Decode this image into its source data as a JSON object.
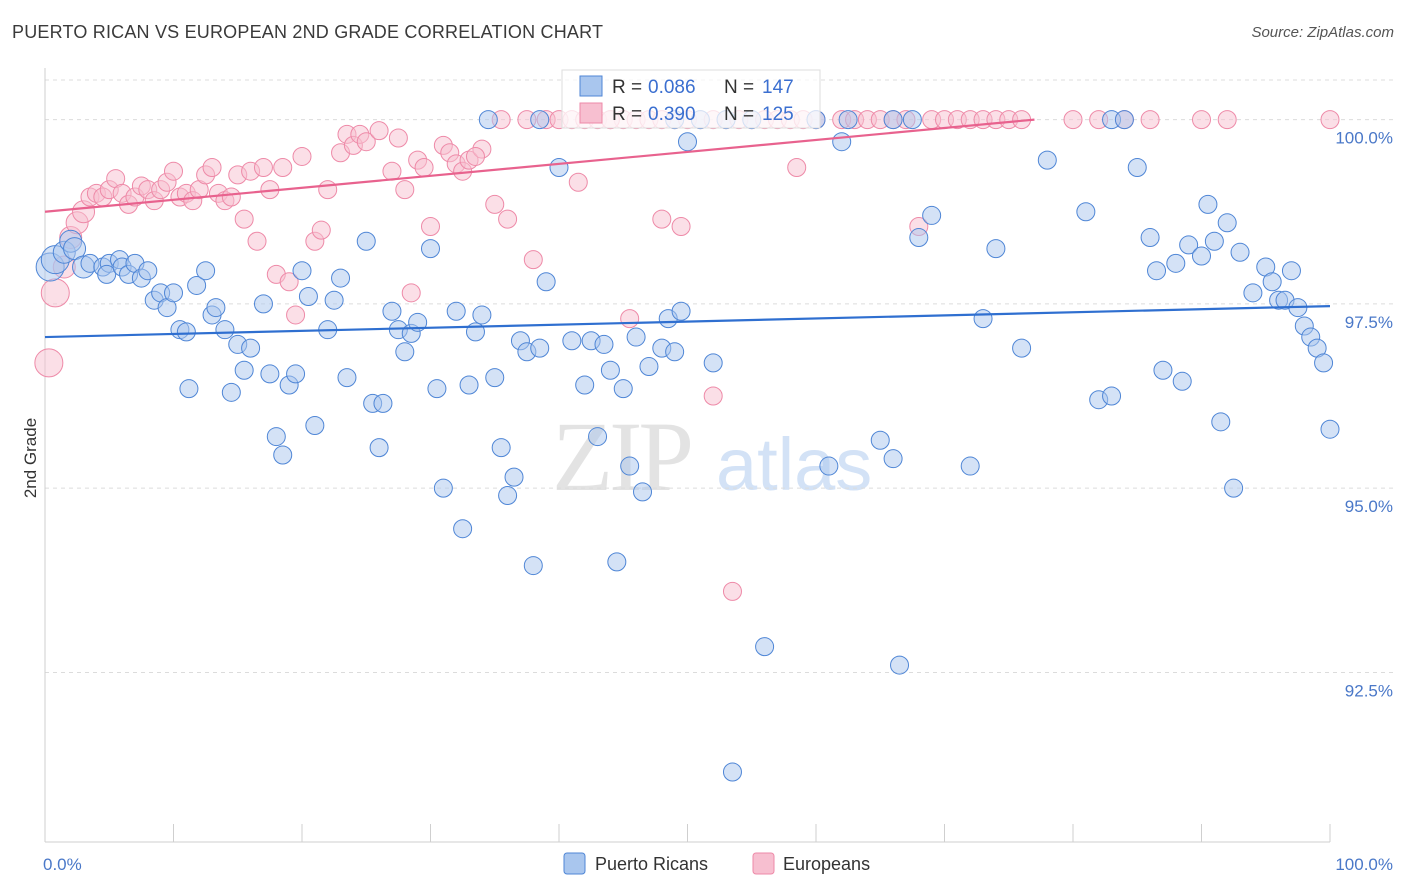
{
  "header": {
    "title": "PUERTO RICAN VS EUROPEAN 2ND GRADE CORRELATION CHART",
    "source": "Source: ZipAtlas.com"
  },
  "watermark": {
    "zip": "ZIP",
    "atlas": "atlas"
  },
  "colors": {
    "blue_fill": "#a9c6ee",
    "blue_stroke": "#4f86d6",
    "blue_line": "#2f6fd0",
    "pink_fill": "#f7bfd0",
    "pink_stroke": "#ee8aa8",
    "pink_line": "#e8628e",
    "grid": "#dcdcdc",
    "tick_text": "#4a78c8"
  },
  "chart_data": {
    "type": "scatter",
    "title": "PUERTO RICAN VS EUROPEAN 2ND GRADE CORRELATION CHART",
    "xlabel": "",
    "ylabel": "2nd Grade",
    "xlim": [
      0,
      100
    ],
    "ylim": [
      90.2,
      100.7
    ],
    "y_ticks": [
      92.5,
      95.0,
      97.5,
      100.0
    ],
    "y_tick_labels": [
      "92.5%",
      "95.0%",
      "97.5%",
      "100.0%"
    ],
    "x_tick_labels": [
      "0.0%",
      "100.0%"
    ],
    "legend": {
      "series": [
        {
          "name": "Puerto Ricans",
          "r_label": "R =",
          "r_value": "0.086",
          "n_label": "N =",
          "n_value": "147"
        },
        {
          "name": "Europeans",
          "r_label": "R =",
          "r_value": "0.390",
          "n_label": "N =",
          "n_value": "125"
        }
      ]
    },
    "series": [
      {
        "name": "Puerto Ricans",
        "trend": {
          "x": [
            0,
            100
          ],
          "y": [
            97.05,
            97.47
          ]
        },
        "points": [
          [
            0.4,
            98.0
          ],
          [
            0.8,
            98.1
          ],
          [
            1.5,
            98.2
          ],
          [
            2,
            98.35
          ],
          [
            2.3,
            98.25
          ],
          [
            3,
            98
          ],
          [
            3.5,
            98.05
          ],
          [
            4.5,
            98
          ],
          [
            5,
            98.05
          ],
          [
            4.8,
            97.9
          ],
          [
            5.8,
            98.1
          ],
          [
            6,
            98
          ],
          [
            6.5,
            97.9
          ],
          [
            7,
            98.05
          ],
          [
            7.5,
            97.85
          ],
          [
            8,
            97.95
          ],
          [
            8.5,
            97.55
          ],
          [
            9,
            97.65
          ],
          [
            9.5,
            97.45
          ],
          [
            10,
            97.65
          ],
          [
            10.5,
            97.15
          ],
          [
            11,
            97.12
          ],
          [
            11.2,
            96.35
          ],
          [
            11.8,
            97.75
          ],
          [
            12.5,
            97.95
          ],
          [
            13,
            97.35
          ],
          [
            13.3,
            97.45
          ],
          [
            14,
            97.15
          ],
          [
            14.5,
            96.3
          ],
          [
            15,
            96.95
          ],
          [
            15.5,
            96.6
          ],
          [
            16,
            96.9
          ],
          [
            17,
            97.5
          ],
          [
            17.5,
            96.55
          ],
          [
            18,
            95.7
          ],
          [
            18.5,
            95.45
          ],
          [
            19,
            96.4
          ],
          [
            19.5,
            96.55
          ],
          [
            20,
            97.95
          ],
          [
            20.5,
            97.6
          ],
          [
            21,
            95.85
          ],
          [
            22,
            97.15
          ],
          [
            22.5,
            97.55
          ],
          [
            23,
            97.85
          ],
          [
            23.5,
            96.5
          ],
          [
            25,
            98.35
          ],
          [
            25.5,
            96.15
          ],
          [
            26,
            95.55
          ],
          [
            26.3,
            96.15
          ],
          [
            27,
            97.4
          ],
          [
            27.5,
            97.15
          ],
          [
            28,
            96.85
          ],
          [
            28.5,
            97.1
          ],
          [
            29,
            97.25
          ],
          [
            30,
            98.25
          ],
          [
            30.5,
            96.35
          ],
          [
            31,
            95
          ],
          [
            32,
            97.4
          ],
          [
            32.5,
            94.45
          ],
          [
            33,
            96.4
          ],
          [
            33.5,
            97.12
          ],
          [
            34,
            97.35
          ],
          [
            35,
            96.5
          ],
          [
            35.5,
            95.55
          ],
          [
            36,
            94.9
          ],
          [
            36.5,
            95.15
          ],
          [
            37,
            97.0
          ],
          [
            37.5,
            96.85
          ],
          [
            38,
            93.95
          ],
          [
            38.5,
            96.9
          ],
          [
            39,
            97.8
          ],
          [
            40,
            99.35
          ],
          [
            41,
            97
          ],
          [
            42,
            96.4
          ],
          [
            42.5,
            97
          ],
          [
            43,
            95.7
          ],
          [
            43.5,
            96.95
          ],
          [
            44,
            96.6
          ],
          [
            44.5,
            94
          ],
          [
            45,
            96.35
          ],
          [
            45.5,
            95.3
          ],
          [
            46,
            97.05
          ],
          [
            46.5,
            94.95
          ],
          [
            47,
            96.65
          ],
          [
            48,
            96.9
          ],
          [
            48.5,
            97.3
          ],
          [
            49,
            96.85
          ],
          [
            49.5,
            97.4
          ],
          [
            50,
            99.7
          ],
          [
            52,
            96.7
          ],
          [
            53.5,
            91.15
          ],
          [
            56,
            92.85
          ],
          [
            61,
            95.3
          ],
          [
            62,
            99.7
          ],
          [
            65,
            95.65
          ],
          [
            66,
            95.4
          ],
          [
            66.5,
            92.6
          ],
          [
            68,
            98.4
          ],
          [
            69,
            98.7
          ],
          [
            72,
            95.3
          ],
          [
            73,
            97.3
          ],
          [
            74,
            98.25
          ],
          [
            76,
            96.9
          ],
          [
            78,
            99.45
          ],
          [
            81,
            98.75
          ],
          [
            82,
            96.2
          ],
          [
            83,
            96.25
          ],
          [
            85,
            99.35
          ],
          [
            86,
            98.4
          ],
          [
            86.5,
            97.95
          ],
          [
            87,
            96.6
          ],
          [
            88,
            98.05
          ],
          [
            88.5,
            96.45
          ],
          [
            89,
            98.3
          ],
          [
            90,
            98.15
          ],
          [
            91,
            98.35
          ],
          [
            91.5,
            95.9
          ],
          [
            92,
            98.6
          ],
          [
            92.5,
            95
          ],
          [
            93,
            98.2
          ],
          [
            94,
            97.65
          ],
          [
            95,
            98
          ],
          [
            95.5,
            97.8
          ],
          [
            96,
            97.55
          ],
          [
            96.5,
            97.55
          ],
          [
            97,
            97.95
          ],
          [
            97.5,
            97.45
          ],
          [
            98,
            97.2
          ],
          [
            98.5,
            97.05
          ],
          [
            99,
            96.9
          ],
          [
            99.5,
            96.7
          ],
          [
            100,
            95.8
          ],
          [
            34.5,
            100
          ],
          [
            38.5,
            100
          ],
          [
            49,
            100
          ],
          [
            51,
            100
          ],
          [
            53,
            100
          ],
          [
            55,
            100
          ],
          [
            60,
            100
          ],
          [
            62.5,
            100
          ],
          [
            66,
            100
          ],
          [
            67.5,
            100
          ],
          [
            83,
            100
          ],
          [
            84,
            100
          ],
          [
            90.5,
            98.85
          ]
        ]
      },
      {
        "name": "Europeans",
        "trend": {
          "x": [
            0,
            77
          ],
          "y": [
            98.75,
            100.0
          ]
        },
        "points": [
          [
            0.3,
            96.7
          ],
          [
            0.8,
            97.65
          ],
          [
            1.5,
            98
          ],
          [
            2,
            98.4
          ],
          [
            2.5,
            98.6
          ],
          [
            3,
            98.75
          ],
          [
            3.5,
            98.95
          ],
          [
            4,
            99
          ],
          [
            4.5,
            98.95
          ],
          [
            5,
            99.05
          ],
          [
            5.5,
            99.2
          ],
          [
            6,
            99
          ],
          [
            6.5,
            98.85
          ],
          [
            7,
            98.95
          ],
          [
            7.5,
            99.1
          ],
          [
            8,
            99.05
          ],
          [
            8.5,
            98.9
          ],
          [
            9,
            99.05
          ],
          [
            9.5,
            99.15
          ],
          [
            10,
            99.3
          ],
          [
            10.5,
            98.95
          ],
          [
            11,
            99
          ],
          [
            11.5,
            98.9
          ],
          [
            12,
            99.05
          ],
          [
            12.5,
            99.25
          ],
          [
            13,
            99.35
          ],
          [
            13.5,
            99
          ],
          [
            14,
            98.9
          ],
          [
            14.5,
            98.95
          ],
          [
            15,
            99.25
          ],
          [
            15.5,
            98.65
          ],
          [
            16,
            99.3
          ],
          [
            16.5,
            98.35
          ],
          [
            17,
            99.35
          ],
          [
            17.5,
            99.05
          ],
          [
            18,
            97.9
          ],
          [
            18.5,
            99.35
          ],
          [
            19,
            97.8
          ],
          [
            19.5,
            97.35
          ],
          [
            20,
            99.5
          ],
          [
            21,
            98.35
          ],
          [
            21.5,
            98.5
          ],
          [
            22,
            99.05
          ],
          [
            23,
            99.55
          ],
          [
            23.5,
            99.8
          ],
          [
            24,
            99.65
          ],
          [
            24.5,
            99.8
          ],
          [
            25,
            99.7
          ],
          [
            26,
            99.85
          ],
          [
            27,
            99.3
          ],
          [
            27.5,
            99.75
          ],
          [
            28,
            99.05
          ],
          [
            28.5,
            97.65
          ],
          [
            29,
            99.45
          ],
          [
            29.5,
            99.35
          ],
          [
            30,
            98.55
          ],
          [
            31,
            99.65
          ],
          [
            31.5,
            99.55
          ],
          [
            32,
            99.4
          ],
          [
            32.5,
            99.3
          ],
          [
            33,
            99.45
          ],
          [
            34,
            99.6
          ],
          [
            35,
            98.85
          ],
          [
            35.5,
            100
          ],
          [
            36,
            98.65
          ],
          [
            37.5,
            100
          ],
          [
            38,
            98.1
          ],
          [
            39,
            100
          ],
          [
            40,
            100
          ],
          [
            41,
            100
          ],
          [
            42,
            100
          ],
          [
            43,
            100
          ],
          [
            44,
            100
          ],
          [
            45,
            100
          ],
          [
            46,
            100
          ],
          [
            47,
            100
          ],
          [
            48,
            100
          ],
          [
            49,
            100
          ],
          [
            50,
            100
          ],
          [
            51,
            100
          ],
          [
            52,
            100
          ],
          [
            53,
            100
          ],
          [
            54,
            100
          ],
          [
            55,
            100
          ],
          [
            56,
            100
          ],
          [
            57,
            100
          ],
          [
            58,
            100
          ],
          [
            58.5,
            99.35
          ],
          [
            59,
            100
          ],
          [
            60,
            100
          ],
          [
            62,
            100
          ],
          [
            63,
            100
          ],
          [
            64,
            100
          ],
          [
            65,
            100
          ],
          [
            66,
            100
          ],
          [
            67,
            100
          ],
          [
            68,
            98.55
          ],
          [
            69,
            100
          ],
          [
            70,
            100
          ],
          [
            71,
            100
          ],
          [
            72,
            100
          ],
          [
            73,
            100
          ],
          [
            74,
            100
          ],
          [
            75,
            100
          ],
          [
            76,
            100
          ],
          [
            80,
            100
          ],
          [
            82,
            100
          ],
          [
            84,
            100
          ],
          [
            86,
            100
          ],
          [
            90,
            100
          ],
          [
            92,
            100
          ],
          [
            100,
            100
          ],
          [
            49.5,
            98.55
          ],
          [
            48,
            98.65
          ],
          [
            45.5,
            97.3
          ],
          [
            52,
            96.25
          ],
          [
            53.5,
            93.6
          ],
          [
            44,
            100
          ],
          [
            41.5,
            99.15
          ],
          [
            33.5,
            99.5
          ]
        ]
      }
    ]
  },
  "bottom_legend": [
    "Puerto Ricans",
    "Europeans"
  ]
}
